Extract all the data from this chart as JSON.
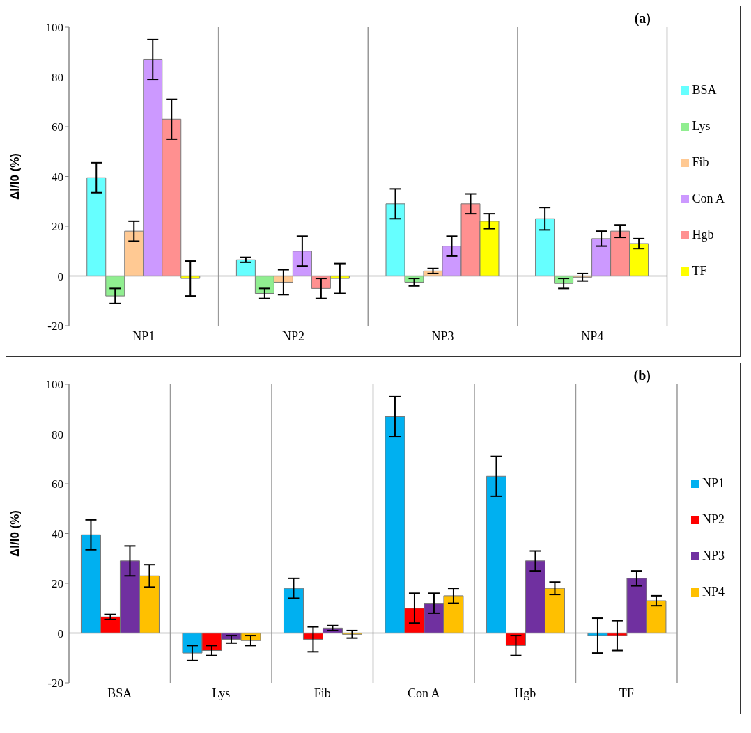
{
  "chart_data": [
    {
      "type": "bar",
      "title": "(a)",
      "ylabel": "ΔI/I0 (%)",
      "categories": [
        "NP1",
        "NP2",
        "NP3",
        "NP4"
      ],
      "series": [
        {
          "name": "BSA",
          "color": "#66ffff",
          "values": [
            39.5,
            6.5,
            29,
            23
          ],
          "errors": [
            6,
            1,
            6,
            4.5
          ]
        },
        {
          "name": "Lys",
          "color": "#90ee90",
          "values": [
            -8,
            -7,
            -2.5,
            -3
          ],
          "errors": [
            3,
            2,
            1.5,
            2
          ]
        },
        {
          "name": "Fib",
          "color": "#ffc993",
          "values": [
            18,
            -2.5,
            2,
            -0.5
          ],
          "errors": [
            4,
            5,
            1,
            1.5
          ]
        },
        {
          "name": "Con A",
          "color": "#cc99ff",
          "values": [
            87,
            10,
            12,
            15
          ],
          "errors": [
            8,
            6,
            4,
            3
          ]
        },
        {
          "name": "Hgb",
          "color": "#ff9090",
          "values": [
            63,
            -5,
            29,
            18
          ],
          "errors": [
            8,
            4,
            4,
            2.5
          ]
        },
        {
          "name": "TF",
          "color": "#ffff00",
          "values": [
            -1,
            -1,
            22,
            13
          ],
          "errors": [
            7,
            6,
            3,
            2
          ]
        }
      ],
      "ylim": [
        -20,
        100
      ],
      "yticks": [
        -20,
        0,
        20,
        40,
        60,
        80,
        100
      ],
      "grid": "x",
      "legend": "right",
      "ref_lines": [
        {
          "axis": "y",
          "value": 0,
          "color": "#999999"
        }
      ]
    },
    {
      "type": "bar",
      "title": "(b)",
      "ylabel": "ΔI/I0 (%)",
      "categories": [
        "BSA",
        "Lys",
        "Fib",
        "Con A",
        "Hgb",
        "TF"
      ],
      "series": [
        {
          "name": "NP1",
          "color": "#00b0f0",
          "values": [
            39.5,
            -8,
            18,
            87,
            63,
            -1
          ],
          "errors": [
            6,
            3,
            4,
            8,
            8,
            7
          ]
        },
        {
          "name": "NP2",
          "color": "#ff0000",
          "values": [
            6.5,
            -7,
            -2.5,
            10,
            -5,
            -1
          ],
          "errors": [
            1,
            2,
            5,
            6,
            4,
            6
          ]
        },
        {
          "name": "NP3",
          "color": "#7030a0",
          "values": [
            29,
            -2.5,
            2,
            12,
            29,
            22
          ],
          "errors": [
            6,
            1.5,
            1,
            4,
            4,
            3
          ]
        },
        {
          "name": "NP4",
          "color": "#ffc000",
          "values": [
            23,
            -3,
            -0.5,
            15,
            18,
            13
          ],
          "errors": [
            4.5,
            2,
            1.5,
            3,
            2.5,
            2
          ]
        }
      ],
      "ylim": [
        -20,
        100
      ],
      "yticks": [
        -20,
        0,
        20,
        40,
        60,
        80,
        100
      ],
      "grid": "x",
      "legend": "right",
      "ref_lines": [
        {
          "axis": "y",
          "value": 0,
          "color": "#999999"
        }
      ]
    }
  ]
}
